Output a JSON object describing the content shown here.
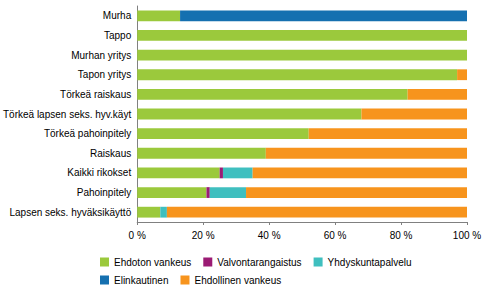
{
  "chart_data": {
    "type": "bar",
    "orientation": "horizontal",
    "stacked": true,
    "grid": false,
    "legend": "bottom",
    "categories": [
      "Murha",
      "Tappo",
      "Murhan yritys",
      "Tapon yritys",
      "Törkeä raiskaus",
      "Törkeä lapsen seks. hyv.käyt",
      "Törkeä pahoinpitely",
      "Raiskaus",
      "Kaikki rikokset",
      "Pahoinpitely",
      "Lapsen seks. hyväksikäyttö"
    ],
    "series": [
      {
        "name": "Ehdoton vankeus",
        "color": "#9bc93c",
        "values": [
          13,
          100,
          100,
          97,
          82,
          68,
          52,
          39,
          25,
          21,
          7
        ]
      },
      {
        "name": "Valvontarangaistus",
        "color": "#9b1b74",
        "values": [
          0,
          0,
          0,
          0,
          0,
          0,
          0,
          0,
          1,
          1,
          0
        ]
      },
      {
        "name": "Yhdyskuntapalvelu",
        "color": "#3fbfbf",
        "values": [
          0,
          0,
          0,
          0,
          0,
          0,
          0,
          0,
          9,
          11,
          2
        ]
      },
      {
        "name": "Elinkautinen",
        "color": "#1570b0",
        "values": [
          87,
          0,
          0,
          0,
          0,
          0,
          0,
          0,
          0,
          0,
          0
        ]
      },
      {
        "name": "Ehdollinen vankeus",
        "color": "#f7941d",
        "values": [
          0,
          0,
          0,
          3,
          18,
          32,
          48,
          61,
          65,
          67,
          91
        ]
      }
    ],
    "xlim": [
      0,
      100
    ],
    "xticks": [
      {
        "value": 0,
        "label": "0 %"
      },
      {
        "value": 20,
        "label": "20 %"
      },
      {
        "value": 40,
        "label": "40 %"
      },
      {
        "value": 60,
        "label": "60 %"
      },
      {
        "value": 80,
        "label": "80 %"
      },
      {
        "value": 100,
        "label": "100 %"
      }
    ]
  }
}
